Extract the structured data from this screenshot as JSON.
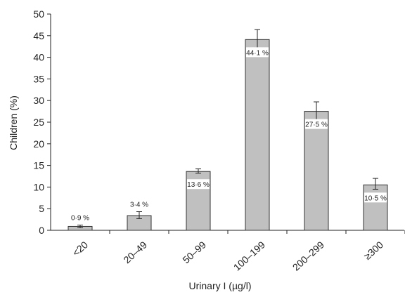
{
  "chart_data": {
    "type": "bar",
    "title": "",
    "xlabel": "Urinary I (µg/l)",
    "ylabel": "Children (%)",
    "ylim": [
      0,
      50
    ],
    "yticks": [
      0,
      5,
      10,
      15,
      20,
      25,
      30,
      35,
      40,
      45,
      50
    ],
    "grid": false,
    "legend": "none",
    "categories": [
      "<20",
      "20–49",
      "50–99",
      "100–199",
      "200–299",
      "≥300"
    ],
    "values": [
      0.9,
      3.4,
      13.6,
      44.1,
      27.5,
      10.5
    ],
    "error_bars": [
      {
        "low": 0.6,
        "high": 1.2
      },
      {
        "low": 2.7,
        "high": 4.3
      },
      {
        "low": 13.2,
        "high": 14.2
      },
      {
        "low": 42.0,
        "high": 46.4
      },
      {
        "low": 25.5,
        "high": 29.7
      },
      {
        "low": 9.5,
        "high": 12.0
      }
    ],
    "data_labels": [
      "0·9 %",
      "3·4 %",
      "13·6 %",
      "44·1 %",
      "27·5 %",
      "10·5 %"
    ],
    "bar_color": "#c0c0c0",
    "bar_edge_color": "#333333"
  }
}
